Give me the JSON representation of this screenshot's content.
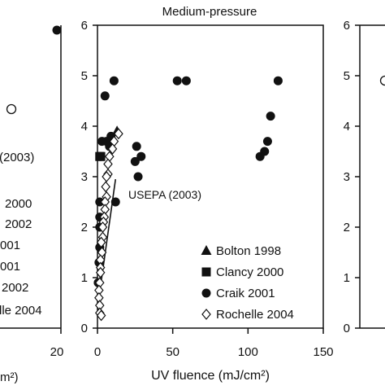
{
  "chart_data": [
    {
      "type": "scatter",
      "panel": "left (cropped)",
      "title": "",
      "xlabel": "",
      "ylabel": "",
      "xlim": [
        0,
        20
      ],
      "ylim": [
        0,
        6
      ],
      "xticks": [
        20
      ],
      "visible_points": [
        {
          "marker": "filled-circle",
          "x": 20,
          "y": 5.9
        },
        {
          "marker": "open-circle",
          "x": 11.8,
          "y": 4.3
        }
      ],
      "text_fragments": [
        "(2003)",
        "2000",
        "2002",
        "001",
        "001",
        "2002",
        "lle 2004"
      ],
      "xlabel_fragment": "m²)"
    },
    {
      "type": "scatter",
      "panel": "center",
      "title": "Medium-pressure",
      "xlabel": "UV fluence (mJ/cm²)",
      "ylabel": "",
      "xlim": [
        0,
        150
      ],
      "ylim": [
        0,
        6
      ],
      "xticks": [
        0,
        50,
        100,
        150
      ],
      "yticks": [
        0,
        1,
        2,
        3,
        4,
        5,
        6
      ],
      "legend_position": "bottom-right",
      "series": [
        {
          "name": "Bolton 1998",
          "marker": "filled-triangle",
          "points": [
            [
              13,
              3.9
            ]
          ]
        },
        {
          "name": "Clancy 2000",
          "marker": "filled-square",
          "points": [
            [
              1.5,
              3.4
            ],
            [
              2.2,
              3.4
            ]
          ]
        },
        {
          "name": "Craik 2001",
          "marker": "filled-circle",
          "points": [
            [
              11,
              4.9
            ],
            [
              5,
              4.6
            ],
            [
              53,
              4.9
            ],
            [
              59,
              4.9
            ],
            [
              120,
              4.9
            ],
            [
              9,
              3.8
            ],
            [
              6,
              3.7
            ],
            [
              3,
              3.7
            ],
            [
              8,
              3.6
            ],
            [
              26,
              3.6
            ],
            [
              29,
              3.4
            ],
            [
              25,
              3.3
            ],
            [
              12,
              2.5
            ],
            [
              27,
              3.0
            ],
            [
              2,
              3.4
            ],
            [
              1.5,
              2.5
            ],
            [
              1.5,
              2.2
            ],
            [
              1.5,
              2.0
            ],
            [
              1.5,
              1.6
            ],
            [
              1.0,
              1.3
            ],
            [
              0.5,
              0.9
            ],
            [
              115,
              4.2
            ],
            [
              113,
              3.7
            ],
            [
              111,
              3.5
            ],
            [
              108,
              3.4
            ]
          ]
        },
        {
          "name": "Rochelle 2004",
          "marker": "open-diamond",
          "points": [
            [
              14,
              3.85
            ],
            [
              11,
              3.7
            ],
            [
              10,
              3.55
            ],
            [
              8,
              3.4
            ],
            [
              7,
              3.25
            ],
            [
              7,
              3.05
            ],
            [
              6,
              3.0
            ],
            [
              5.5,
              2.8
            ],
            [
              6,
              2.6
            ],
            [
              5,
              2.5
            ],
            [
              5,
              2.35
            ],
            [
              4.5,
              2.2
            ],
            [
              4,
              2.1
            ],
            [
              3.5,
              2.0
            ],
            [
              3.5,
              1.8
            ],
            [
              2.5,
              1.7
            ],
            [
              3,
              1.5
            ],
            [
              2,
              1.35
            ],
            [
              2,
              1.2
            ],
            [
              2,
              1.1
            ],
            [
              1.5,
              0.9
            ],
            [
              1,
              0.75
            ],
            [
              1,
              0.6
            ],
            [
              1.5,
              0.45
            ],
            [
              1.5,
              0.3
            ],
            [
              2.5,
              0.25
            ]
          ]
        }
      ],
      "fit_line": {
        "label": "USEPA (2003)",
        "from": [
          0,
          0.4
        ],
        "to": [
          12,
          2.95
        ]
      }
    },
    {
      "type": "scatter",
      "panel": "right (cropped)",
      "title": "",
      "xlabel": "",
      "ylabel": "",
      "ylim": [
        0,
        6
      ],
      "yticks": [
        0,
        1,
        2,
        3,
        4,
        5,
        6
      ],
      "visible_points": [
        {
          "marker": "open-circle",
          "x": 0,
          "y": 4.9
        }
      ]
    }
  ]
}
